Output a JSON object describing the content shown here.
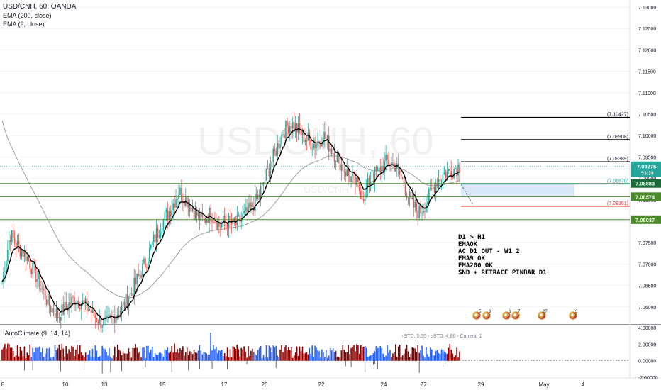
{
  "legend": {
    "symbol": "USD/CNH, 60, OANDA",
    "ema1": "EMA (200, close)",
    "ema2": "EMA (9, close)"
  },
  "watermark": {
    "main": "USDCNH, 60",
    "sub": "USD/CNH"
  },
  "notes": [
    "D1 > H1",
    "EMAOK",
    "AC D1 OUT - W1 2",
    "",
    "EMA9 OK",
    "EMA200 OK",
    "SND + RETRACE PINBAR D1"
  ],
  "indicator": {
    "name": "!AutoClimate (9, 14, 14)",
    "std_text": "↑STD: 5.55 - ↓STD: 4.86 - Current: 1",
    "axis_labels": [
      "4.00000",
      "2.00000",
      "0.00000",
      "-2.00000"
    ]
  },
  "price_axis": {
    "ticks": [
      "7.13000",
      "7.12500",
      "7.12000",
      "7.11500",
      "7.11000",
      "7.10500",
      "7.10000",
      "7.09500",
      "7.09000",
      "7.08500",
      "7.08000",
      "7.07500",
      "7.07000",
      "7.06500",
      "7.06000"
    ],
    "current_price": "7.09275",
    "countdown": "53:39",
    "level_tags": [
      "7.08883",
      "7.08574",
      "7.08037"
    ]
  },
  "time_axis": {
    "labels": [
      "8",
      "10",
      "13",
      "15",
      "17",
      "20",
      "22",
      "24",
      "27",
      "29",
      "May",
      "4"
    ]
  },
  "levels": {
    "black": [
      {
        "price": 7.10427,
        "label": "(7.10427)"
      },
      {
        "price": 7.09908,
        "label": "(7.09908)"
      },
      {
        "price": 7.09389,
        "label": "(7.09389)"
      }
    ],
    "teal": {
      "price": 7.0887,
      "label": "(7.08870)"
    },
    "red": {
      "price": 7.08351,
      "label": "(7.08351)"
    },
    "green": [
      7.08883,
      7.08574,
      7.08037
    ]
  },
  "events": [
    {
      "count": "5"
    },
    {
      "count": "8"
    },
    {
      "count": "6"
    },
    {
      "count": "7"
    },
    {
      "count": "27"
    },
    {
      "count": "3"
    }
  ],
  "colors": {
    "up": "#26a69a",
    "down": "#ef5350",
    "ema9": "#000000",
    "ema200": "#a0a0a0",
    "level_green": "#4a8a2a",
    "level_red": "#e53935",
    "level_teal": "#26a69a",
    "current_tag": "#26a69a",
    "zone": "#cfe3f7",
    "hist_up": "#2962ff",
    "hist_down": "#8b0000"
  },
  "chart_data": {
    "type": "candlestick",
    "symbol": "USD/CNH",
    "timeframe": "60",
    "ylim": [
      7.056,
      7.131
    ],
    "indicator_ylim": [
      -2,
      4
    ],
    "close_path": [
      7.066,
      7.077,
      7.074,
      7.072,
      7.068,
      7.064,
      7.06,
      7.058,
      7.06,
      7.062,
      7.061,
      7.059,
      7.057,
      7.056,
      7.058,
      7.06,
      7.063,
      7.067,
      7.071,
      7.076,
      7.08,
      7.083,
      7.087,
      7.085,
      7.082,
      7.08,
      7.082,
      7.079,
      7.08,
      7.079,
      7.081,
      7.083,
      7.086,
      7.091,
      7.096,
      7.101,
      7.103,
      7.101,
      7.099,
      7.098,
      7.1,
      7.097,
      7.094,
      7.091,
      7.089,
      7.086,
      7.09,
      7.092,
      7.094,
      7.093,
      7.089,
      7.084,
      7.082,
      7.085,
      7.089,
      7.091,
      7.092,
      7.093
    ]
  }
}
